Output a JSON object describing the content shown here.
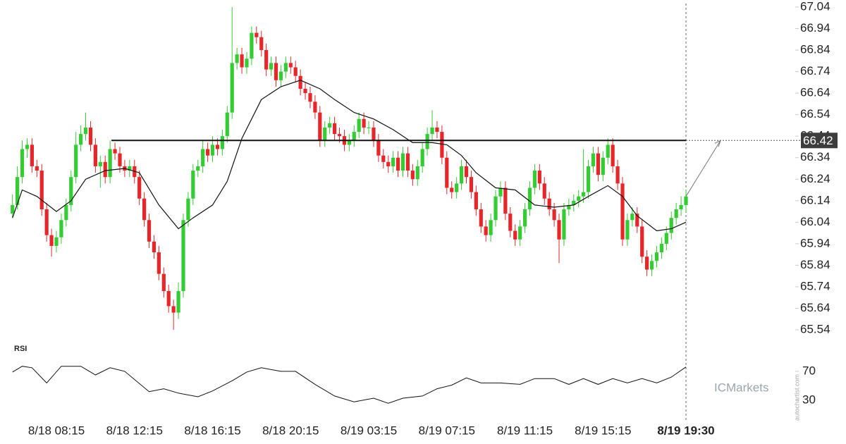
{
  "chart_data": {
    "type": "candlestick",
    "up_color": "#33cc33",
    "down_color": "#e8262a",
    "ylim": [
      65.54,
      67.04
    ],
    "yticks": [
      67.04,
      66.94,
      66.84,
      66.74,
      66.64,
      66.54,
      66.44,
      66.34,
      66.24,
      66.14,
      66.04,
      65.94,
      65.84,
      65.74,
      65.64,
      65.54
    ],
    "xlim": [
      0,
      138
    ],
    "xticks": [
      {
        "value": 9,
        "label": "8/18 08:15"
      },
      {
        "value": 25,
        "label": "8/18 12:15"
      },
      {
        "value": 41,
        "label": "8/18 16:15"
      },
      {
        "value": 57,
        "label": "8/18 20:15"
      },
      {
        "value": 73,
        "label": "8/19 03:15"
      },
      {
        "value": 89,
        "label": "8/19 07:15"
      },
      {
        "value": 105,
        "label": "8/19 11:15"
      },
      {
        "value": 121,
        "label": "8/19 15:15"
      },
      {
        "value": 138,
        "label": "8/19 19:30"
      }
    ],
    "level": 66.42,
    "candles": [
      [
        66.08,
        66.17,
        66.06,
        66.12
      ],
      [
        66.12,
        66.3,
        66.1,
        66.25
      ],
      [
        66.25,
        66.42,
        66.22,
        66.38
      ],
      [
        66.38,
        66.43,
        66.34,
        66.4
      ],
      [
        66.4,
        66.43,
        66.27,
        66.3
      ],
      [
        66.3,
        66.33,
        66.25,
        66.28
      ],
      [
        66.28,
        66.31,
        66.07,
        66.1
      ],
      [
        66.1,
        66.13,
        65.95,
        65.98
      ],
      [
        65.98,
        66.01,
        65.88,
        65.93
      ],
      [
        65.93,
        66.0,
        65.9,
        65.97
      ],
      [
        65.97,
        66.08,
        65.94,
        66.05
      ],
      [
        66.05,
        66.15,
        66.02,
        66.12
      ],
      [
        66.12,
        66.28,
        66.09,
        66.25
      ],
      [
        66.25,
        66.46,
        66.22,
        66.4
      ],
      [
        66.4,
        66.49,
        66.37,
        66.45
      ],
      [
        66.45,
        66.55,
        66.42,
        66.48
      ],
      [
        66.48,
        66.51,
        66.37,
        66.4
      ],
      [
        66.4,
        66.43,
        66.27,
        66.3
      ],
      [
        66.3,
        66.35,
        66.2,
        66.32
      ],
      [
        66.32,
        66.35,
        66.22,
        66.25
      ],
      [
        66.25,
        66.42,
        66.22,
        66.38
      ],
      [
        66.38,
        66.41,
        66.33,
        66.36
      ],
      [
        66.36,
        66.39,
        66.27,
        66.3
      ],
      [
        66.3,
        66.33,
        66.25,
        66.28
      ],
      [
        66.28,
        66.33,
        66.25,
        66.3
      ],
      [
        66.3,
        66.33,
        66.22,
        66.25
      ],
      [
        66.25,
        66.28,
        66.12,
        66.15
      ],
      [
        66.15,
        66.18,
        66.02,
        66.05
      ],
      [
        66.05,
        66.08,
        65.92,
        65.95
      ],
      [
        65.95,
        65.98,
        65.87,
        65.9
      ],
      [
        65.9,
        65.93,
        65.77,
        65.8
      ],
      [
        65.8,
        65.83,
        65.69,
        65.72
      ],
      [
        65.72,
        65.75,
        65.62,
        65.65
      ],
      [
        65.65,
        65.68,
        65.54,
        65.62
      ],
      [
        65.62,
        65.76,
        65.59,
        65.72
      ],
      [
        65.72,
        66.08,
        65.69,
        66.05
      ],
      [
        66.05,
        66.18,
        66.02,
        66.15
      ],
      [
        66.15,
        66.31,
        66.12,
        66.28
      ],
      [
        66.28,
        66.33,
        66.25,
        66.3
      ],
      [
        66.3,
        66.42,
        66.27,
        66.38
      ],
      [
        66.38,
        66.41,
        66.32,
        66.35
      ],
      [
        66.35,
        66.44,
        66.32,
        66.4
      ],
      [
        66.4,
        66.43,
        66.35,
        66.38
      ],
      [
        66.38,
        66.47,
        66.35,
        66.44
      ],
      [
        66.44,
        66.58,
        66.41,
        66.55
      ],
      [
        66.55,
        67.04,
        66.52,
        66.78
      ],
      [
        66.78,
        66.85,
        66.75,
        66.82
      ],
      [
        66.82,
        66.85,
        66.73,
        66.76
      ],
      [
        66.76,
        66.83,
        66.73,
        66.8
      ],
      [
        66.8,
        66.95,
        66.77,
        66.92
      ],
      [
        66.92,
        66.95,
        66.87,
        66.9
      ],
      [
        66.9,
        66.93,
        66.81,
        66.84
      ],
      [
        66.84,
        66.87,
        66.72,
        66.75
      ],
      [
        66.75,
        66.81,
        66.72,
        66.78
      ],
      [
        66.78,
        66.81,
        66.67,
        66.7
      ],
      [
        66.7,
        66.77,
        66.67,
        66.74
      ],
      [
        66.74,
        66.81,
        66.71,
        66.78
      ],
      [
        66.78,
        66.81,
        66.73,
        66.76
      ],
      [
        66.76,
        66.79,
        66.69,
        66.72
      ],
      [
        66.72,
        66.75,
        66.63,
        66.66
      ],
      [
        66.66,
        66.69,
        66.61,
        66.64
      ],
      [
        66.64,
        66.67,
        66.57,
        66.6
      ],
      [
        66.6,
        66.63,
        66.52,
        66.55
      ],
      [
        66.55,
        66.58,
        66.39,
        66.42
      ],
      [
        66.42,
        66.51,
        66.39,
        66.48
      ],
      [
        66.48,
        66.53,
        66.45,
        66.5
      ],
      [
        66.5,
        66.53,
        66.42,
        66.45
      ],
      [
        66.45,
        66.48,
        66.41,
        66.44
      ],
      [
        66.44,
        66.47,
        66.37,
        66.4
      ],
      [
        66.4,
        66.45,
        66.37,
        66.42
      ],
      [
        66.42,
        66.49,
        66.39,
        66.46
      ],
      [
        66.46,
        66.55,
        66.43,
        66.52
      ],
      [
        66.52,
        66.55,
        66.45,
        66.48
      ],
      [
        66.48,
        66.51,
        66.45,
        66.48
      ],
      [
        66.48,
        66.51,
        66.39,
        66.42
      ],
      [
        66.42,
        66.45,
        66.32,
        66.35
      ],
      [
        66.35,
        66.38,
        66.29,
        66.32
      ],
      [
        66.32,
        66.35,
        66.27,
        66.3
      ],
      [
        66.3,
        66.37,
        66.27,
        66.34
      ],
      [
        66.34,
        66.37,
        66.25,
        66.28
      ],
      [
        66.28,
        66.39,
        66.25,
        66.36
      ],
      [
        66.36,
        66.39,
        66.25,
        66.28
      ],
      [
        66.28,
        66.31,
        66.21,
        66.24
      ],
      [
        66.24,
        66.33,
        66.21,
        66.3
      ],
      [
        66.3,
        66.41,
        66.27,
        66.38
      ],
      [
        66.38,
        66.48,
        66.35,
        66.45
      ],
      [
        66.45,
        66.56,
        66.42,
        66.48
      ],
      [
        66.48,
        66.51,
        66.43,
        66.46
      ],
      [
        66.46,
        66.49,
        66.31,
        66.34
      ],
      [
        66.34,
        66.37,
        66.17,
        66.2
      ],
      [
        66.2,
        66.23,
        66.15,
        66.18
      ],
      [
        66.18,
        66.25,
        66.15,
        66.22
      ],
      [
        66.22,
        66.33,
        66.19,
        66.3
      ],
      [
        66.3,
        66.33,
        66.22,
        66.25
      ],
      [
        66.25,
        66.28,
        66.15,
        66.18
      ],
      [
        66.18,
        66.21,
        66.07,
        66.1
      ],
      [
        66.1,
        66.13,
        65.99,
        66.02
      ],
      [
        66.02,
        66.05,
        65.95,
        65.98
      ],
      [
        65.98,
        66.08,
        65.95,
        66.05
      ],
      [
        66.05,
        66.19,
        66.02,
        66.16
      ],
      [
        66.16,
        66.23,
        66.13,
        66.2
      ],
      [
        66.2,
        66.23,
        66.05,
        66.08
      ],
      [
        66.08,
        66.11,
        65.97,
        66.0
      ],
      [
        66.0,
        66.03,
        65.93,
        65.96
      ],
      [
        65.96,
        66.05,
        65.93,
        66.02
      ],
      [
        66.02,
        66.13,
        65.99,
        66.1
      ],
      [
        66.1,
        66.23,
        66.07,
        66.2
      ],
      [
        66.2,
        66.31,
        66.17,
        66.28
      ],
      [
        66.28,
        66.31,
        66.19,
        66.22
      ],
      [
        66.22,
        66.25,
        66.12,
        66.15
      ],
      [
        66.15,
        66.18,
        66.07,
        66.1
      ],
      [
        66.1,
        66.13,
        66.02,
        66.05
      ],
      [
        66.05,
        66.08,
        65.85,
        65.96
      ],
      [
        65.96,
        66.13,
        65.93,
        66.1
      ],
      [
        66.1,
        66.15,
        66.07,
        66.12
      ],
      [
        66.12,
        66.17,
        66.09,
        66.14
      ],
      [
        66.14,
        66.19,
        66.11,
        66.16
      ],
      [
        66.16,
        66.38,
        66.13,
        66.18
      ],
      [
        66.18,
        66.33,
        66.15,
        66.3
      ],
      [
        66.3,
        66.39,
        66.27,
        66.36
      ],
      [
        66.36,
        66.39,
        66.23,
        66.26
      ],
      [
        66.26,
        66.37,
        66.23,
        66.34
      ],
      [
        66.34,
        66.43,
        66.31,
        66.4
      ],
      [
        66.4,
        66.43,
        66.27,
        66.3
      ],
      [
        66.3,
        66.33,
        66.19,
        66.22
      ],
      [
        66.22,
        66.25,
        65.93,
        65.96
      ],
      [
        65.96,
        66.08,
        65.93,
        66.05
      ],
      [
        66.05,
        66.11,
        66.02,
        66.08
      ],
      [
        66.08,
        66.11,
        65.99,
        66.02
      ],
      [
        66.02,
        66.05,
        65.85,
        65.88
      ],
      [
        65.88,
        65.91,
        65.79,
        65.82
      ],
      [
        65.82,
        65.89,
        65.79,
        65.86
      ],
      [
        65.86,
        65.93,
        65.83,
        65.9
      ],
      [
        65.9,
        65.97,
        65.87,
        65.94
      ],
      [
        65.94,
        66.02,
        65.91,
        65.99
      ],
      [
        65.99,
        66.09,
        65.96,
        66.06
      ],
      [
        66.06,
        66.13,
        66.03,
        66.1
      ],
      [
        66.1,
        66.16,
        66.07,
        66.12
      ],
      [
        66.12,
        66.19,
        66.09,
        66.16
      ]
    ],
    "moving_average": {
      "color": "#111111",
      "x": [
        0,
        2,
        5,
        9,
        12,
        15,
        19,
        23,
        26,
        30,
        34,
        37,
        41,
        44,
        47,
        51,
        55,
        59,
        63,
        66,
        70,
        74,
        78,
        82,
        86,
        89,
        92,
        95,
        99,
        103,
        107,
        111,
        115,
        118,
        122,
        125,
        128,
        132,
        135,
        138
      ],
      "values": [
        66.06,
        66.19,
        66.16,
        66.09,
        66.14,
        66.24,
        66.28,
        66.29,
        66.27,
        66.12,
        66.01,
        66.06,
        66.12,
        66.23,
        66.43,
        66.61,
        66.67,
        66.7,
        66.66,
        66.61,
        66.55,
        66.52,
        66.47,
        66.41,
        66.41,
        66.4,
        66.35,
        66.27,
        66.2,
        66.19,
        66.12,
        66.11,
        66.12,
        66.16,
        66.21,
        66.16,
        66.07,
        66.0,
        66.01,
        66.04
      ]
    },
    "rsi": {
      "label": "RSI",
      "color": "#111111",
      "ylim": [
        0,
        100
      ],
      "yticks": [
        70,
        30
      ],
      "x": [
        0,
        2,
        4,
        7,
        10,
        14,
        17,
        20,
        23,
        28,
        31,
        34,
        38,
        41,
        45,
        48,
        51,
        55,
        58,
        62,
        66,
        70,
        74,
        77,
        80,
        84,
        87,
        90,
        93,
        96,
        100,
        104,
        107,
        111,
        114,
        117,
        120,
        123,
        126,
        129,
        132,
        135,
        138
      ],
      "values": [
        69,
        77,
        75,
        54,
        77,
        77,
        65,
        75,
        70,
        42,
        46,
        40,
        35,
        43,
        57,
        69,
        75,
        70,
        70,
        52,
        36,
        28,
        33,
        26,
        33,
        36,
        46,
        51,
        61,
        54,
        54,
        52,
        60,
        60,
        52,
        60,
        52,
        60,
        54,
        60,
        54,
        62,
        76
      ]
    },
    "watermark": "ICMarkets",
    "credit": "autochartist.com"
  }
}
